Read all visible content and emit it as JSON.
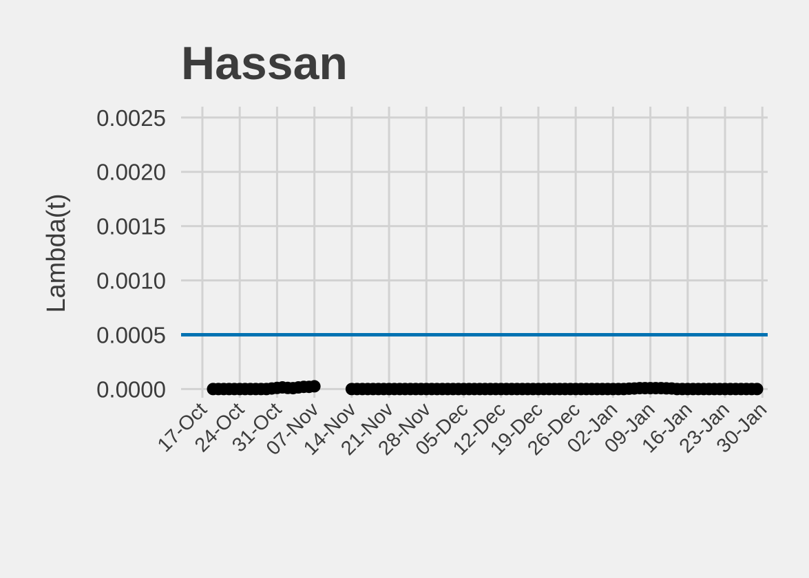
{
  "chart_data": {
    "type": "line",
    "title": "Hassan",
    "ylabel": "Lambda(t)",
    "xlabel": "",
    "ylim": [
      -8e-05,
      0.0026
    ],
    "xlim": [
      "2020-10-13",
      "2021-01-31"
    ],
    "yticks": [
      "0.0000",
      "0.0005",
      "0.0010",
      "0.0015",
      "0.0020",
      "0.0025"
    ],
    "ytick_values": [
      0,
      0.0005,
      0.001,
      0.0015,
      0.002,
      0.0025
    ],
    "xticks": [
      "17-Oct",
      "24-Oct",
      "31-Oct",
      "07-Nov",
      "14-Nov",
      "21-Nov",
      "28-Nov",
      "05-Dec",
      "12-Dec",
      "19-Dec",
      "26-Dec",
      "02-Jan",
      "09-Jan",
      "16-Jan",
      "23-Jan",
      "30-Jan"
    ],
    "xtick_dates": [
      "2020-10-17",
      "2020-10-24",
      "2020-10-31",
      "2020-11-07",
      "2020-11-14",
      "2020-11-21",
      "2020-11-28",
      "2020-12-05",
      "2020-12-12",
      "2020-12-19",
      "2020-12-26",
      "2021-01-02",
      "2021-01-09",
      "2021-01-16",
      "2021-01-23",
      "2021-01-30"
    ],
    "grid": true,
    "hline": {
      "y": 0.0005,
      "color": "#0072b2"
    },
    "series": [
      {
        "color": "#000000",
        "segments": [
          {
            "start": "2020-10-19",
            "end": "2020-10-29",
            "values": [
              0,
              0,
              0,
              0,
              0,
              0,
              0,
              0,
              0,
              0,
              0
            ]
          },
          {
            "start": "2020-10-30",
            "end": "2020-11-07",
            "values": [
              5e-06,
              1e-05,
              1.5e-05,
              1e-05,
              8e-06,
              1.5e-05,
              2e-05,
              2e-05,
              2.5e-05
            ]
          },
          {
            "start": "2020-11-14",
            "end": "2021-01-29",
            "values": [
              0,
              0,
              0,
              0,
              0,
              0,
              0,
              0,
              0,
              0,
              0,
              0,
              0,
              0,
              0,
              0,
              0,
              0,
              0,
              0,
              0,
              0,
              0,
              0,
              0,
              0,
              0,
              0,
              0,
              0,
              0,
              0,
              0,
              0,
              0,
              0,
              0,
              0,
              0,
              0,
              0,
              0,
              0,
              0,
              0,
              0,
              0,
              0,
              0,
              0,
              0,
              0,
              3e-06,
              5e-06,
              8e-06,
              8e-06,
              8e-06,
              8e-06,
              8e-06,
              6e-06,
              5e-06,
              0,
              0,
              0,
              0,
              0,
              0,
              0,
              0,
              0,
              0,
              0,
              0,
              0,
              0,
              0,
              0
            ]
          }
        ]
      }
    ]
  }
}
